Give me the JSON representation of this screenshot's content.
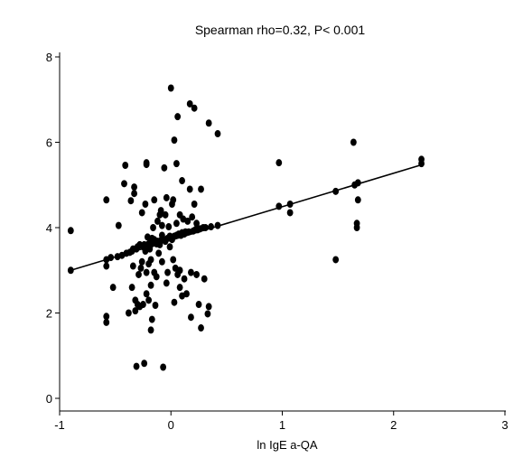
{
  "chart_data": {
    "type": "scatter",
    "title": "Spearman rho=0.32, P< 0.001",
    "xlabel": "ln IgE a-QA",
    "ylabel": "",
    "xlim": [
      -1,
      3
    ],
    "ylim": [
      0,
      8
    ],
    "xticks": [
      -1,
      0,
      1,
      2,
      3
    ],
    "yticks": [
      0,
      2,
      4,
      6,
      8
    ],
    "grid": false,
    "fit_line": {
      "x": [
        -0.9,
        2.25
      ],
      "y": [
        3.0,
        5.47
      ]
    },
    "points": [
      {
        "x": -0.9,
        "y": 3.93
      },
      {
        "x": -0.9,
        "y": 3.0
      },
      {
        "x": -0.58,
        "y": 4.65
      },
      {
        "x": -0.58,
        "y": 3.25
      },
      {
        "x": -0.58,
        "y": 3.1
      },
      {
        "x": -0.58,
        "y": 1.92
      },
      {
        "x": -0.58,
        "y": 1.78
      },
      {
        "x": -0.54,
        "y": 3.3
      },
      {
        "x": -0.52,
        "y": 2.6
      },
      {
        "x": -0.48,
        "y": 3.32
      },
      {
        "x": -0.47,
        "y": 4.05
      },
      {
        "x": -0.44,
        "y": 3.35
      },
      {
        "x": -0.42,
        "y": 5.03
      },
      {
        "x": -0.41,
        "y": 5.46
      },
      {
        "x": -0.4,
        "y": 3.4
      },
      {
        "x": -0.38,
        "y": 2.0
      },
      {
        "x": -0.37,
        "y": 3.42
      },
      {
        "x": -0.36,
        "y": 4.63
      },
      {
        "x": -0.35,
        "y": 2.6
      },
      {
        "x": -0.35,
        "y": 3.45
      },
      {
        "x": -0.34,
        "y": 3.5
      },
      {
        "x": -0.34,
        "y": 3.1
      },
      {
        "x": -0.33,
        "y": 4.95
      },
      {
        "x": -0.33,
        "y": 4.8
      },
      {
        "x": -0.32,
        "y": 2.05
      },
      {
        "x": -0.32,
        "y": 2.3
      },
      {
        "x": -0.31,
        "y": 3.5
      },
      {
        "x": -0.31,
        "y": 0.75
      },
      {
        "x": -0.3,
        "y": 3.55
      },
      {
        "x": -0.3,
        "y": 2.2
      },
      {
        "x": -0.29,
        "y": 2.9
      },
      {
        "x": -0.28,
        "y": 3.6
      },
      {
        "x": -0.28,
        "y": 2.15
      },
      {
        "x": -0.27,
        "y": 3.05
      },
      {
        "x": -0.26,
        "y": 3.2
      },
      {
        "x": -0.26,
        "y": 4.35
      },
      {
        "x": -0.25,
        "y": 3.55
      },
      {
        "x": -0.25,
        "y": 2.2
      },
      {
        "x": -0.24,
        "y": 3.6
      },
      {
        "x": -0.24,
        "y": 0.82
      },
      {
        "x": -0.23,
        "y": 4.55
      },
      {
        "x": -0.23,
        "y": 3.45
      },
      {
        "x": -0.22,
        "y": 2.95
      },
      {
        "x": -0.22,
        "y": 2.45
      },
      {
        "x": -0.22,
        "y": 5.52
      },
      {
        "x": -0.22,
        "y": 5.48
      },
      {
        "x": -0.21,
        "y": 3.6
      },
      {
        "x": -0.21,
        "y": 3.78
      },
      {
        "x": -0.2,
        "y": 3.15
      },
      {
        "x": -0.2,
        "y": 2.3
      },
      {
        "x": -0.19,
        "y": 3.65
      },
      {
        "x": -0.19,
        "y": 3.5
      },
      {
        "x": -0.18,
        "y": 2.65
      },
      {
        "x": -0.18,
        "y": 3.25
      },
      {
        "x": -0.18,
        "y": 1.6
      },
      {
        "x": -0.17,
        "y": 1.85
      },
      {
        "x": -0.17,
        "y": 3.62
      },
      {
        "x": -0.17,
        "y": 3.75
      },
      {
        "x": -0.16,
        "y": 4.0
      },
      {
        "x": -0.15,
        "y": 2.95
      },
      {
        "x": -0.15,
        "y": 4.65
      },
      {
        "x": -0.15,
        "y": 3.72
      },
      {
        "x": -0.14,
        "y": 2.18
      },
      {
        "x": -0.13,
        "y": 3.62
      },
      {
        "x": -0.13,
        "y": 2.85
      },
      {
        "x": -0.12,
        "y": 3.68
      },
      {
        "x": -0.12,
        "y": 4.15
      },
      {
        "x": -0.11,
        "y": 3.65
      },
      {
        "x": -0.11,
        "y": 3.4
      },
      {
        "x": -0.1,
        "y": 4.3
      },
      {
        "x": -0.1,
        "y": 3.6
      },
      {
        "x": -0.09,
        "y": 3.7
      },
      {
        "x": -0.09,
        "y": 4.4
      },
      {
        "x": -0.08,
        "y": 3.82
      },
      {
        "x": -0.08,
        "y": 4.05
      },
      {
        "x": -0.08,
        "y": 3.2
      },
      {
        "x": -0.07,
        "y": 0.73
      },
      {
        "x": -0.06,
        "y": 5.4
      },
      {
        "x": -0.06,
        "y": 3.72
      },
      {
        "x": -0.05,
        "y": 4.3
      },
      {
        "x": -0.05,
        "y": 3.68
      },
      {
        "x": -0.04,
        "y": 4.7
      },
      {
        "x": -0.04,
        "y": 2.7
      },
      {
        "x": -0.03,
        "y": 3.75
      },
      {
        "x": -0.03,
        "y": 2.95
      },
      {
        "x": -0.02,
        "y": 4.02
      },
      {
        "x": -0.01,
        "y": 3.8
      },
      {
        "x": -0.01,
        "y": 3.55
      },
      {
        "x": 0.0,
        "y": 3.78
      },
      {
        "x": 0.0,
        "y": 7.27
      },
      {
        "x": 0.01,
        "y": 4.55
      },
      {
        "x": 0.01,
        "y": 3.72
      },
      {
        "x": 0.02,
        "y": 4.65
      },
      {
        "x": 0.02,
        "y": 3.25
      },
      {
        "x": 0.03,
        "y": 3.8
      },
      {
        "x": 0.03,
        "y": 2.25
      },
      {
        "x": 0.03,
        "y": 6.05
      },
      {
        "x": 0.04,
        "y": 3.05
      },
      {
        "x": 0.05,
        "y": 5.5
      },
      {
        "x": 0.05,
        "y": 3.82
      },
      {
        "x": 0.05,
        "y": 4.1
      },
      {
        "x": 0.06,
        "y": 2.9
      },
      {
        "x": 0.06,
        "y": 6.6
      },
      {
        "x": 0.07,
        "y": 3.85
      },
      {
        "x": 0.08,
        "y": 4.3
      },
      {
        "x": 0.08,
        "y": 3.0
      },
      {
        "x": 0.08,
        "y": 2.6
      },
      {
        "x": 0.09,
        "y": 3.82
      },
      {
        "x": 0.1,
        "y": 5.1
      },
      {
        "x": 0.1,
        "y": 3.88
      },
      {
        "x": 0.1,
        "y": 2.4
      },
      {
        "x": 0.11,
        "y": 4.2
      },
      {
        "x": 0.12,
        "y": 3.85
      },
      {
        "x": 0.12,
        "y": 2.8
      },
      {
        "x": 0.13,
        "y": 3.9
      },
      {
        "x": 0.14,
        "y": 2.45
      },
      {
        "x": 0.15,
        "y": 4.15
      },
      {
        "x": 0.16,
        "y": 3.9
      },
      {
        "x": 0.17,
        "y": 4.9
      },
      {
        "x": 0.17,
        "y": 6.9
      },
      {
        "x": 0.18,
        "y": 2.95
      },
      {
        "x": 0.18,
        "y": 1.9
      },
      {
        "x": 0.19,
        "y": 4.25
      },
      {
        "x": 0.2,
        "y": 3.92
      },
      {
        "x": 0.21,
        "y": 4.55
      },
      {
        "x": 0.21,
        "y": 6.8
      },
      {
        "x": 0.22,
        "y": 3.95
      },
      {
        "x": 0.23,
        "y": 2.9
      },
      {
        "x": 0.23,
        "y": 4.1
      },
      {
        "x": 0.24,
        "y": 3.95
      },
      {
        "x": 0.25,
        "y": 2.2
      },
      {
        "x": 0.26,
        "y": 3.97
      },
      {
        "x": 0.27,
        "y": 4.9
      },
      {
        "x": 0.27,
        "y": 1.65
      },
      {
        "x": 0.29,
        "y": 4.0
      },
      {
        "x": 0.3,
        "y": 2.8
      },
      {
        "x": 0.31,
        "y": 4.0
      },
      {
        "x": 0.33,
        "y": 1.98
      },
      {
        "x": 0.34,
        "y": 2.15
      },
      {
        "x": 0.34,
        "y": 6.45
      },
      {
        "x": 0.36,
        "y": 4.02
      },
      {
        "x": 0.42,
        "y": 6.2
      },
      {
        "x": 0.42,
        "y": 4.05
      },
      {
        "x": 0.97,
        "y": 5.52
      },
      {
        "x": 0.97,
        "y": 4.5
      },
      {
        "x": 1.07,
        "y": 4.55
      },
      {
        "x": 1.07,
        "y": 4.35
      },
      {
        "x": 1.48,
        "y": 3.25
      },
      {
        "x": 1.48,
        "y": 4.85
      },
      {
        "x": 1.64,
        "y": 6.0
      },
      {
        "x": 1.65,
        "y": 5.0
      },
      {
        "x": 1.67,
        "y": 4.1
      },
      {
        "x": 1.67,
        "y": 4.0
      },
      {
        "x": 1.68,
        "y": 4.65
      },
      {
        "x": 1.68,
        "y": 5.05
      },
      {
        "x": 2.25,
        "y": 5.6
      },
      {
        "x": 2.25,
        "y": 5.5
      }
    ]
  }
}
